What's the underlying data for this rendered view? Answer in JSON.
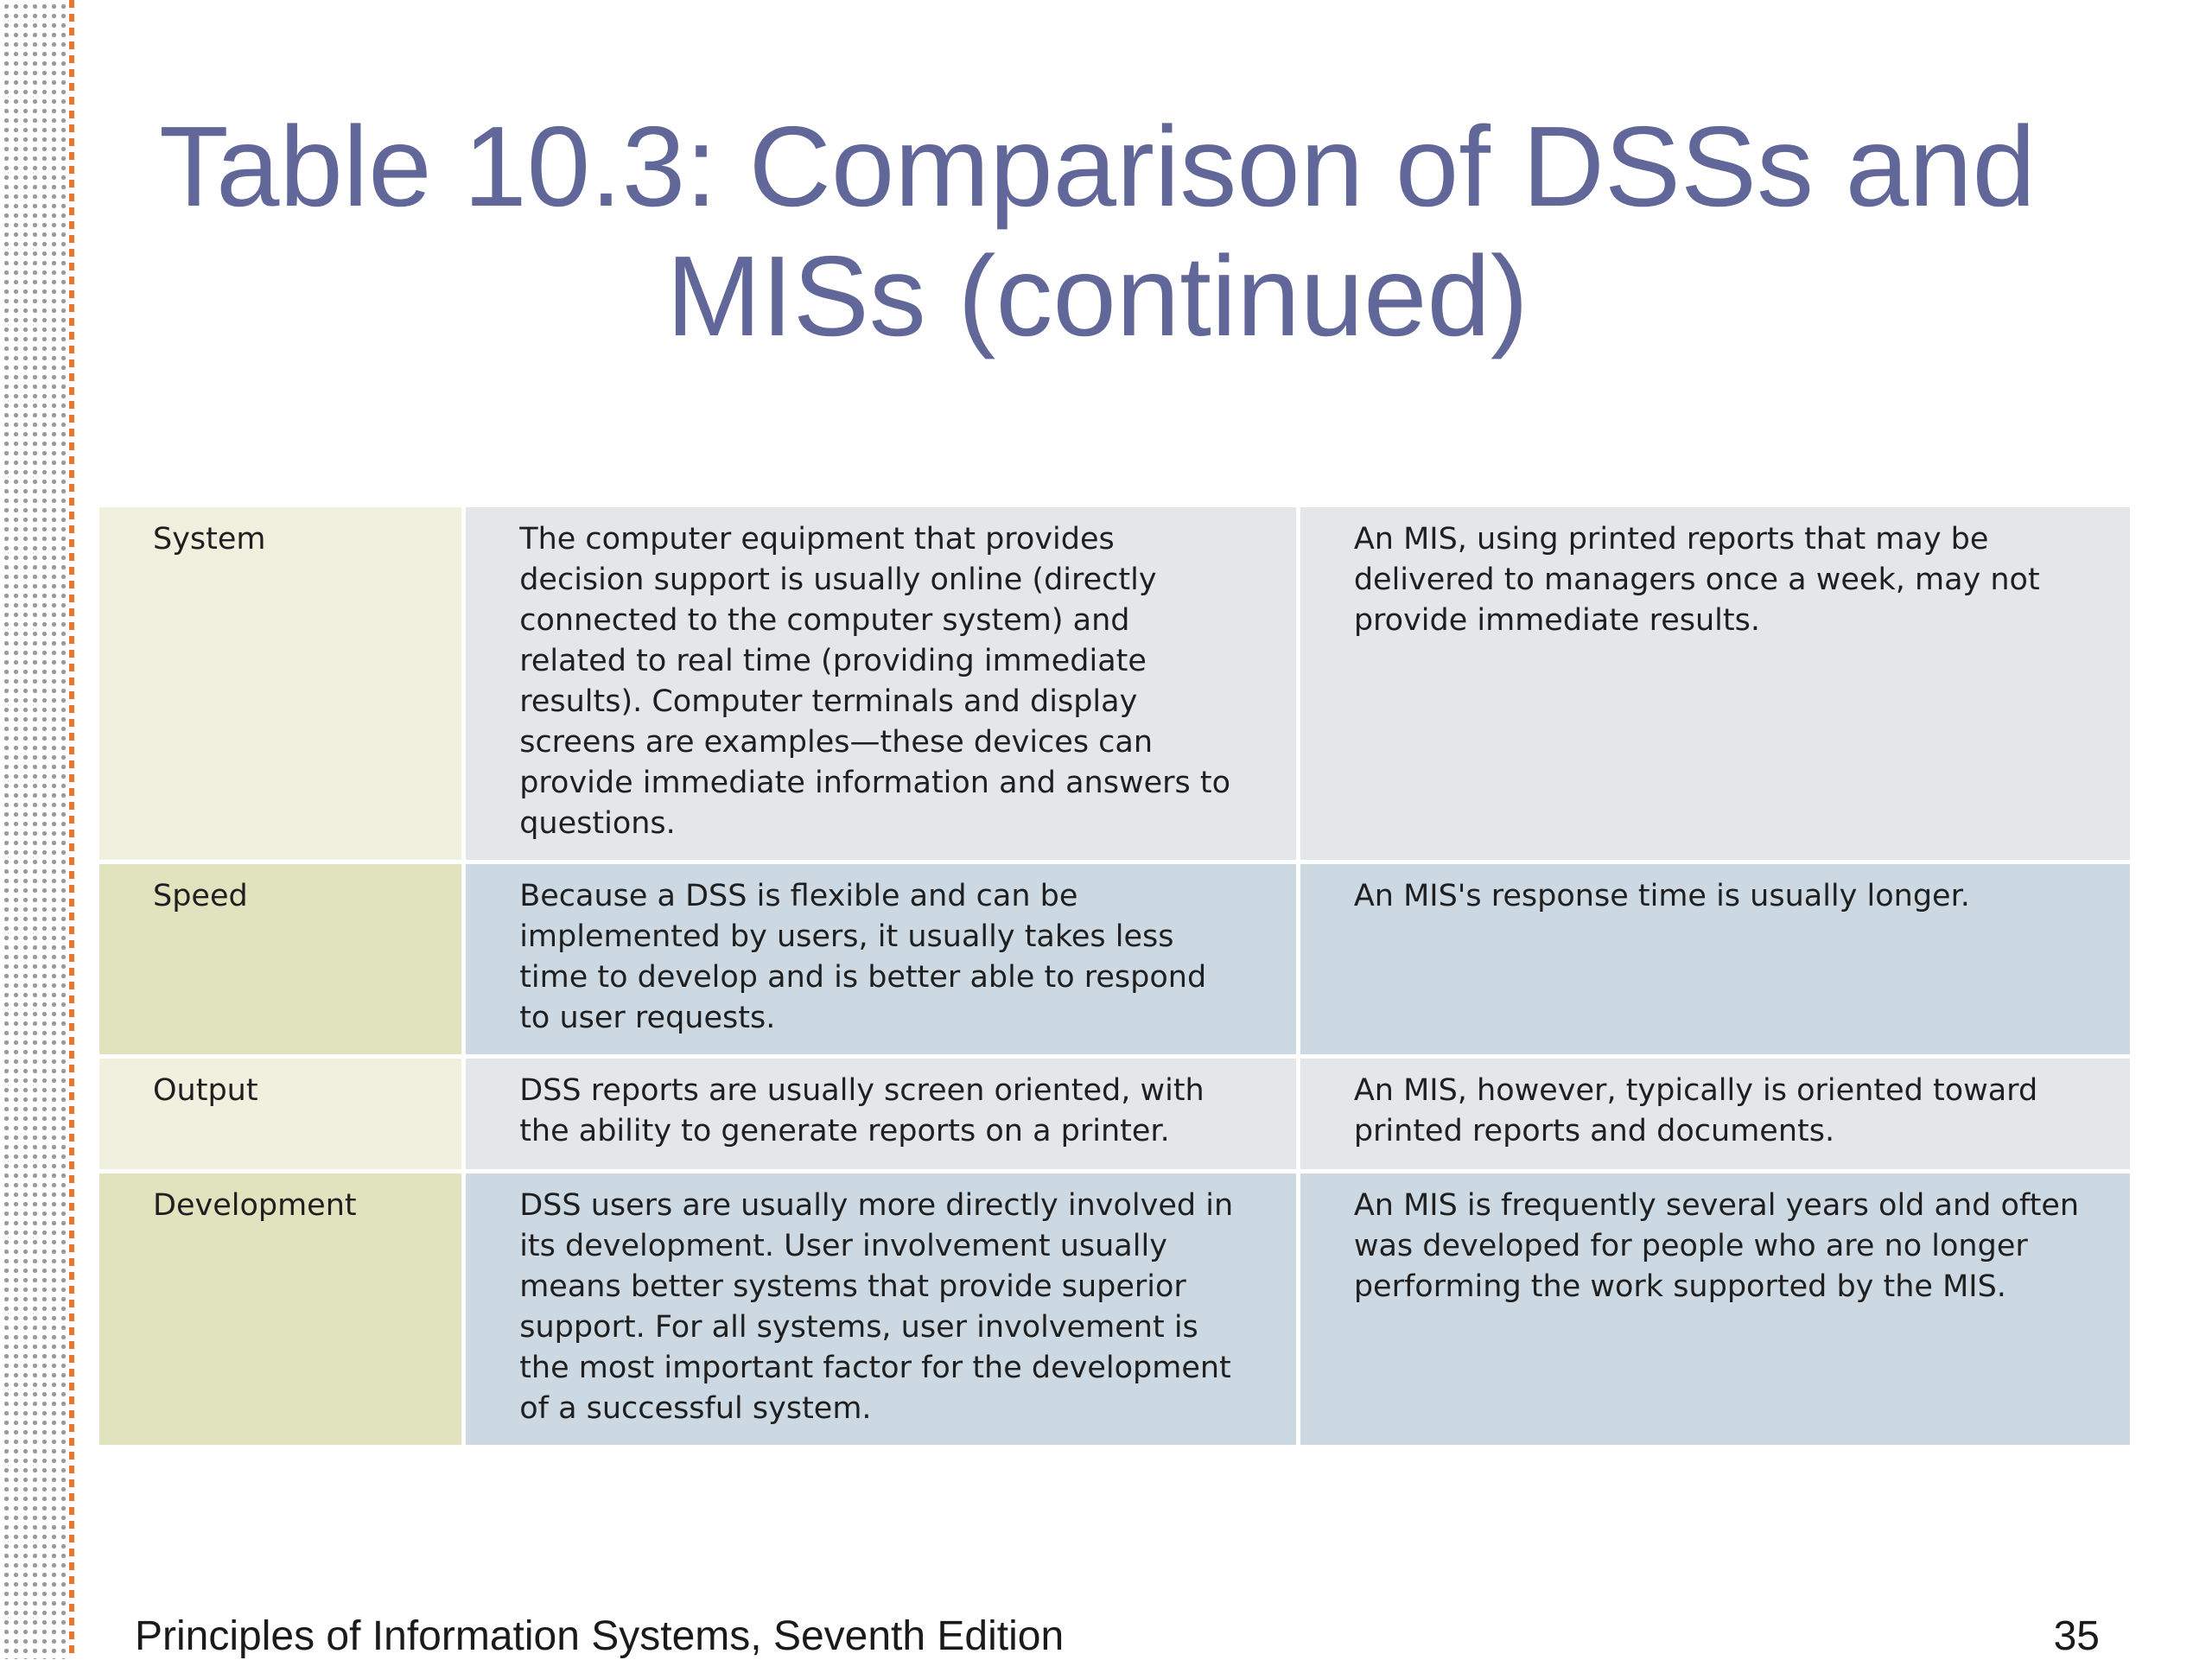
{
  "slide": {
    "title_line1": "Table 10.3: Comparison of DSSs and",
    "title_line2": "MISs (continued)",
    "footer": "Principles of Information Systems, Seventh Edition",
    "page_number": "35"
  },
  "table": {
    "rows": [
      {
        "label": "System",
        "dss": "The computer equipment that provides decision support is usually online (directly connected to the computer system) and related to real time (providing immediate results). Computer terminals and display screens are examples—these devices can provide immediate information and answers to questions.",
        "mis": "An MIS, using printed reports that may be delivered to managers once a week, may not provide immediate results."
      },
      {
        "label": "Speed",
        "dss": "Because a DSS is flexible and can be implemented by users, it usually takes less time to develop and is better able to respond to user requests.",
        "mis": "An MIS's response time is usually longer."
      },
      {
        "label": "Output",
        "dss": "DSS reports are usually screen oriented, with the ability to generate reports on a printer.",
        "mis": "An MIS, however, typically is oriented toward printed reports and documents."
      },
      {
        "label": "Development",
        "dss": "DSS users are usually more directly involved in its development. User involvement usually means better systems that provide superior support. For all systems, user involvement is the most important factor for the development of a successful system.",
        "mis": "An MIS is frequently several years old and often was developed for people who are no longer performing the work supported by the MIS."
      }
    ]
  }
}
